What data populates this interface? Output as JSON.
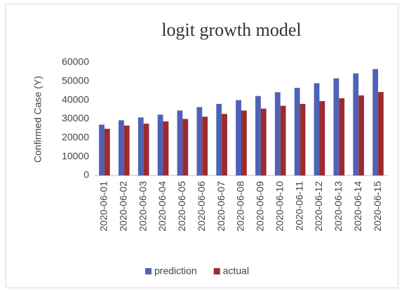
{
  "chart_data": {
    "type": "bar",
    "title": "logit growth model",
    "y_label": "Confirmed Case (Y)",
    "categories": [
      "2020-06-01",
      "2020-06-02",
      "2020-06-03",
      "2020-06-04",
      "2020-06-05",
      "2020-06-06",
      "2020-06-07",
      "2020-06-08",
      "2020-06-09",
      "2020-06-10",
      "2020-06-11",
      "2020-06-12",
      "2020-06-13",
      "2020-06-14",
      "2020-06-15"
    ],
    "series": [
      {
        "name": "prediction",
        "color": "#4f62b5",
        "values": [
          27000,
          29300,
          30800,
          32300,
          34500,
          36300,
          38000,
          40000,
          42200,
          44200,
          46500,
          49000,
          51600,
          54200,
          56500
        ]
      },
      {
        "name": "actual",
        "color": "#9b2b30",
        "values": [
          24800,
          26500,
          27500,
          28700,
          30000,
          31200,
          32700,
          34500,
          35500,
          37000,
          38000,
          39500,
          41000,
          42500,
          44300
        ]
      }
    ],
    "ylim": [
      0,
      60000
    ],
    "yticks": [
      0,
      10000,
      20000,
      30000,
      40000,
      50000,
      60000
    ],
    "grid": false,
    "legend": "bottom"
  }
}
